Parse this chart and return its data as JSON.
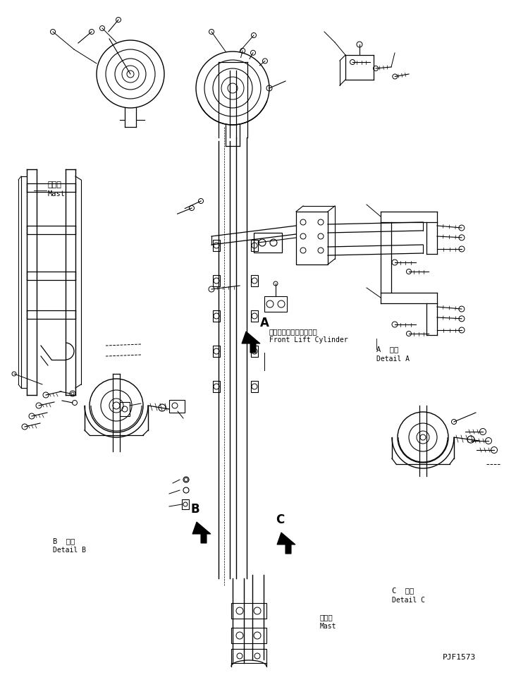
{
  "bg_color": "#ffffff",
  "line_color": "#000000",
  "fig_width": 7.32,
  "fig_height": 9.57,
  "dpi": 100,
  "labels": {
    "mast_top_jp": "マスト",
    "mast_top_en": "Mast",
    "label_A_jp": "フロントリフトシリンダ",
    "label_A_en": "Front Lift Cylinder",
    "detail_A_jp": "A  詳細",
    "detail_A_en": "Detail A",
    "detail_B_jp": "B  詳細",
    "detail_B_en": "Detail B",
    "detail_C_jp": "C  詳細",
    "detail_C_en": "Detail C",
    "mast_bottom_jp": "マスト",
    "mast_bottom_en": "Mast",
    "part_id": "PJF1573",
    "arrow_A": "A",
    "arrow_B": "B",
    "arrow_C": "C"
  }
}
